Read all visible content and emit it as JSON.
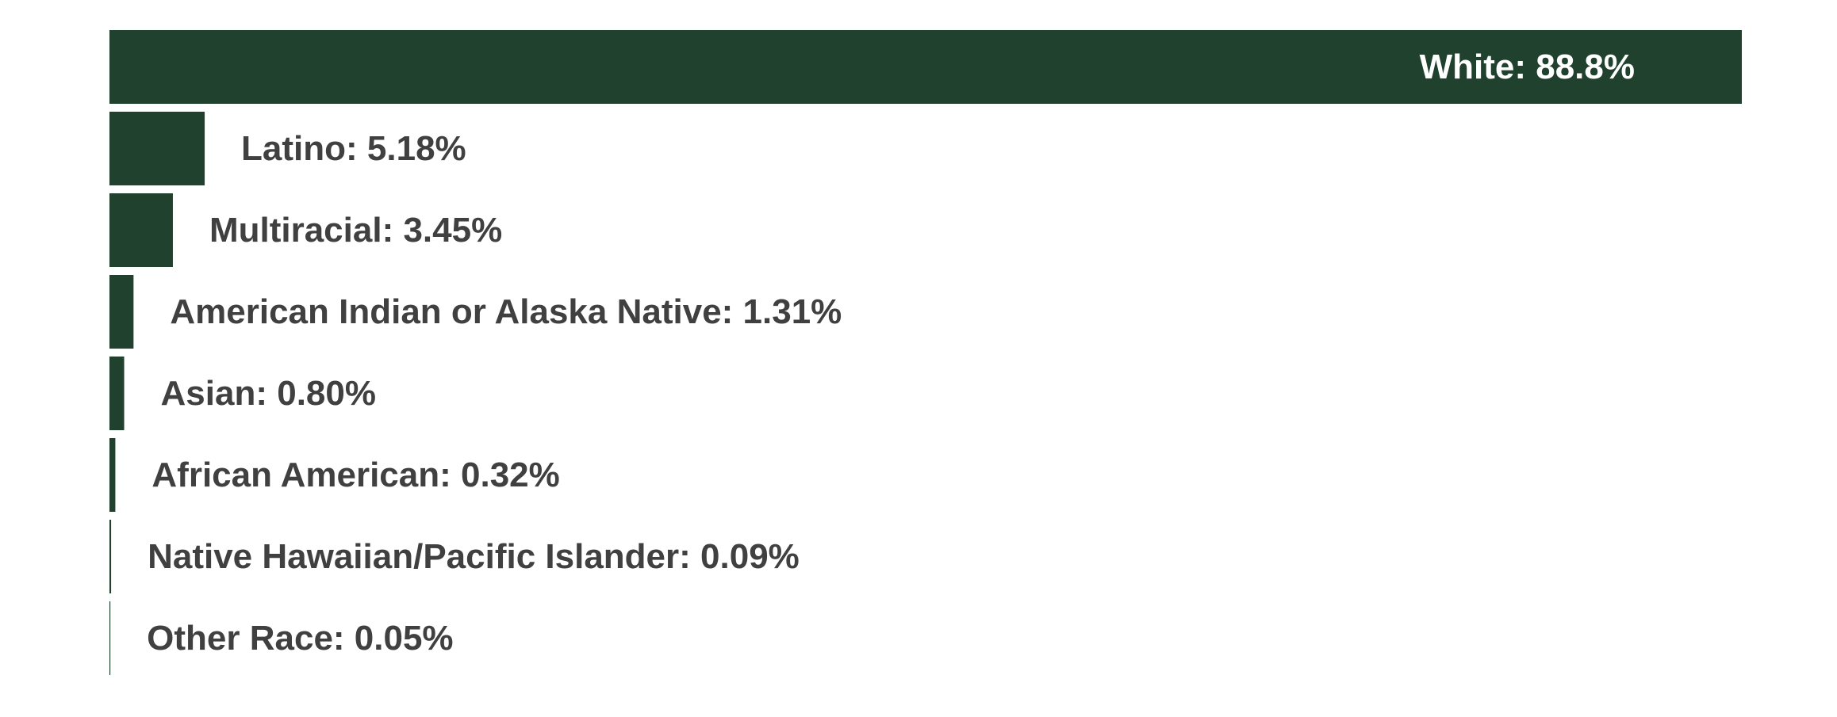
{
  "chart_data": {
    "type": "bar",
    "orientation": "horizontal",
    "title": "",
    "xlabel": "",
    "ylabel": "",
    "xlim": [
      0,
      88.8
    ],
    "grid": false,
    "legend": "none",
    "bar_color": "#21412f",
    "inside_label_color": "#ffffff",
    "outside_label_color": "#404040",
    "categories": [
      "White",
      "Latino",
      "Multiracial",
      "American Indian or Alaska Native",
      "Asian",
      "African American",
      "Native Hawaiian/Pacific Islander",
      "Other Race"
    ],
    "values": [
      88.8,
      5.18,
      3.45,
      1.31,
      0.8,
      0.32,
      0.09,
      0.05
    ],
    "labels": [
      "White: 88.8%",
      "Latino: 5.18%",
      "Multiracial: 3.45%",
      "American Indian or Alaska Native: 1.31%",
      "Asian: 0.80%",
      "African American: 0.32%",
      "Native Hawaiian/Pacific Islander: 0.09%",
      "Other Race: 0.05%"
    ]
  }
}
